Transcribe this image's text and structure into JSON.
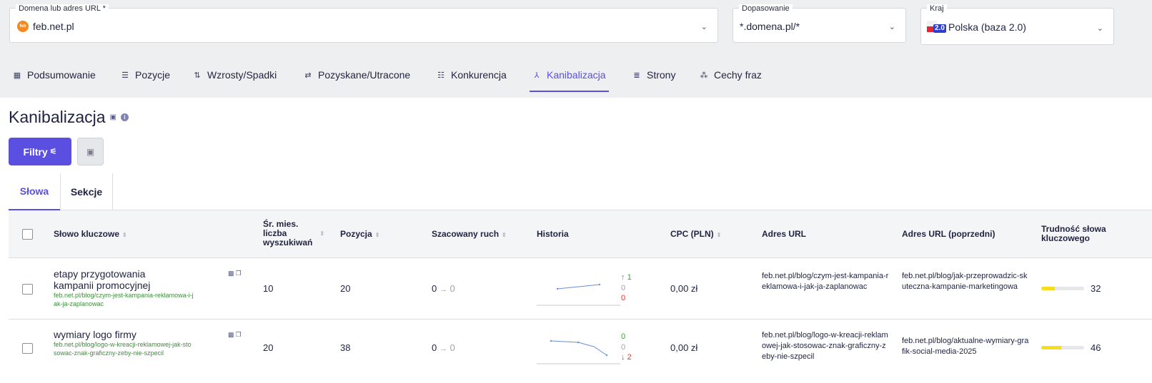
{
  "filters": {
    "domain": {
      "label": "Domena lub adres URL *",
      "value": "feb.net.pl",
      "logo_text": "feb"
    },
    "match": {
      "label": "Dopasowanie",
      "value": "*.domena.pl/*"
    },
    "country": {
      "label": "Kraj",
      "value": "Polska (baza 2.0)",
      "flag_badge": "2.0"
    }
  },
  "nav": [
    {
      "label": "Podsumowanie",
      "icon": "dashboard-icon",
      "glyph": "▦"
    },
    {
      "label": "Pozycje",
      "icon": "list-icon",
      "glyph": "☰"
    },
    {
      "label": "Wzrosty/Spadki",
      "icon": "updown-arrows-icon",
      "glyph": "⇅"
    },
    {
      "label": "Pozyskane/Utracone",
      "icon": "swap-icon",
      "glyph": "⇄"
    },
    {
      "label": "Konkurencja",
      "icon": "group-icon",
      "glyph": "☷"
    },
    {
      "label": "Kanibalizacja",
      "icon": "merge-icon",
      "glyph": "⅄",
      "active": true
    },
    {
      "label": "Strony",
      "icon": "pages-icon",
      "glyph": "≣"
    },
    {
      "label": "Cechy fraz",
      "icon": "shapes-icon",
      "glyph": "⁂"
    }
  ],
  "page": {
    "title": "Kanibalizacja",
    "info_glyph": "i"
  },
  "toolbar": {
    "filter_label": "Filtry",
    "filter_glyph": "⚟",
    "save_glyph": "▣"
  },
  "subtabs": [
    {
      "label": "Słowa",
      "active": true
    },
    {
      "label": "Sekcje"
    }
  ],
  "table": {
    "headers": {
      "keyword": "Słowo kluczowe",
      "volume_line1": "Śr. mies.",
      "volume_line2": "liczba",
      "volume_line3": "wyszukiwań",
      "position": "Pozycja",
      "traffic": "Szacowany ruch",
      "history": "Historia",
      "cpc": "CPC (PLN)",
      "url": "Adres URL",
      "prev_url": "Adres URL (poprzedni)",
      "difficulty_line1": "Trudność słowa",
      "difficulty_line2": "kluczowego"
    },
    "rows": [
      {
        "keyword": "etapy przygotowania kampanii promocyjnej",
        "keyword_url": "feb.net.pl/blog/czym-jest-kampania-reklamowa-i-jak-ja-zaplanowac",
        "volume": "10",
        "position": "20",
        "traffic_from": "0",
        "traffic_to": "0",
        "history_up": "1",
        "history_same": "0",
        "history_down": "0",
        "cpc": "0,00 zł",
        "url": "feb.net.pl/blog/czym-jest-kampania-reklamowa-i-jak-ja-zaplanowac",
        "prev_url": "feb.net.pl/blog/jak-przeprowadzic-skuteczna-kampanie-marketingowa",
        "difficulty": 32
      },
      {
        "keyword": "wymiary logo firmy",
        "keyword_url": "feb.net.pl/blog/logo-w-kreacji-reklamowej-jak-stosowac-znak-graficzny-zeby-nie-szpecil",
        "volume": "20",
        "position": "38",
        "traffic_from": "0",
        "traffic_to": "0",
        "history_up": "0",
        "history_same": "0",
        "history_down": "2",
        "cpc": "0,00 zł",
        "url": "feb.net.pl/blog/logo-w-kreacji-reklamowej-jak-stosowac-znak-graficzny-zeby-nie-szpecil",
        "prev_url": "feb.net.pl/blog/aktualne-wymiary-grafik-social-media-2025",
        "difficulty": 46
      }
    ]
  },
  "colors": {
    "accent": "#5a4fe0",
    "url_green": "#3d8f3a",
    "up": "#3aa23a",
    "down": "#e0362b",
    "difficulty_fill": "#f5de1e"
  }
}
